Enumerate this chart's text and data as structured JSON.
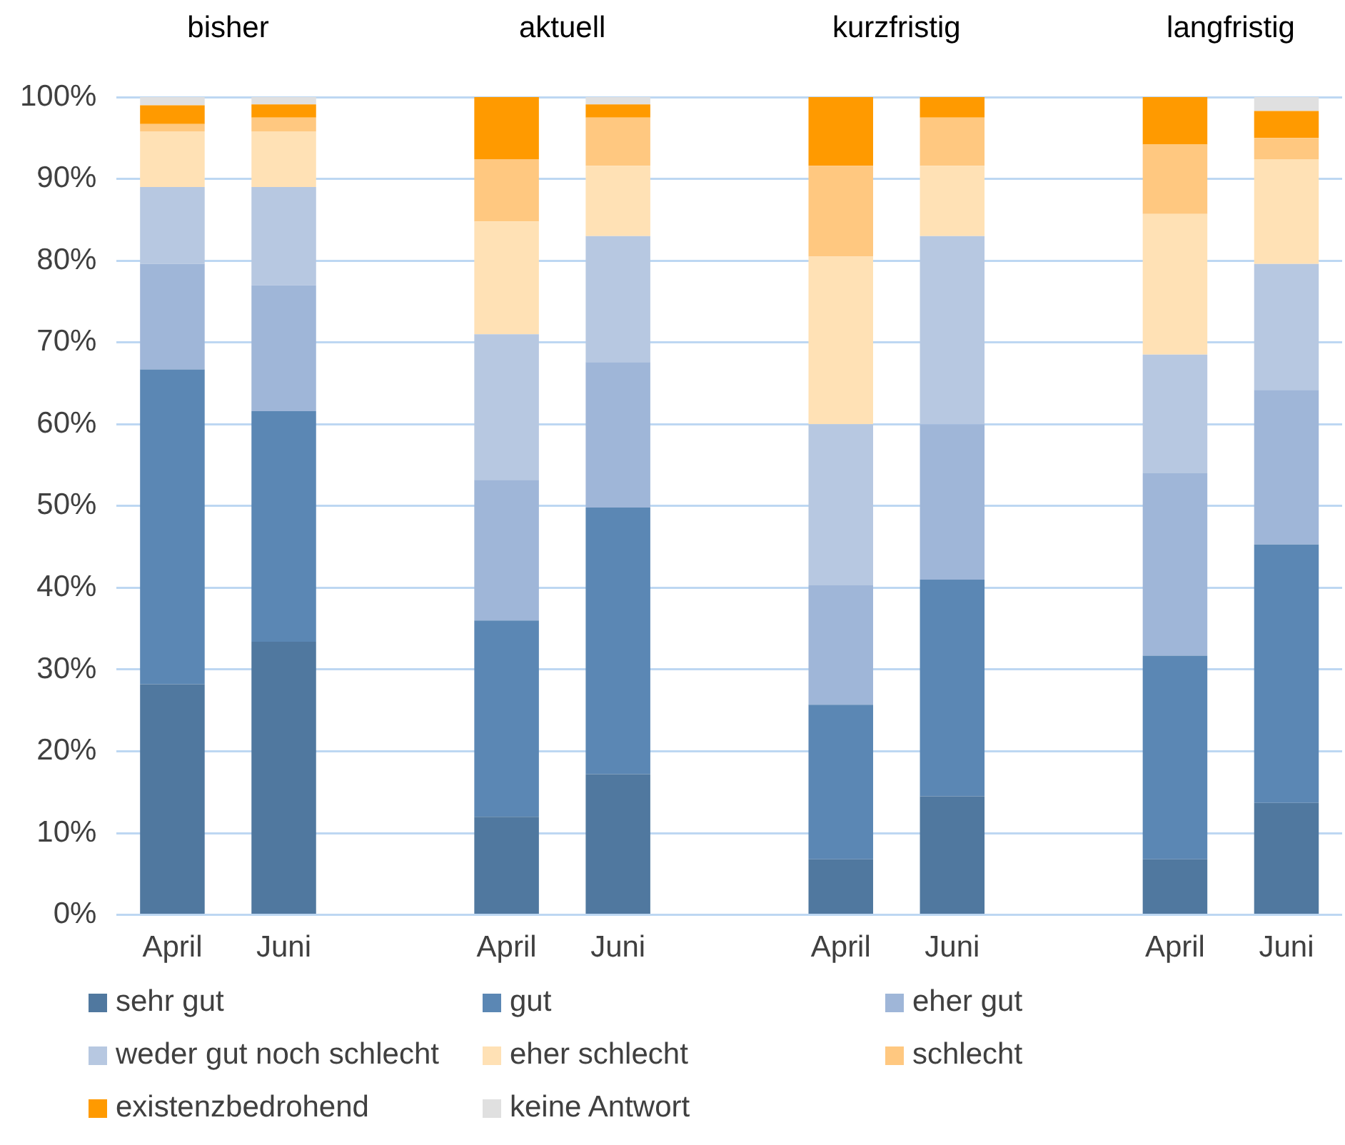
{
  "chart_data": {
    "type": "bar",
    "stacked": true,
    "categories": [
      "April",
      "Juni",
      null,
      "April",
      "Juni",
      null,
      "April",
      "Juni",
      null,
      "April",
      "Juni"
    ],
    "annotations": [
      "bisher",
      "aktuell",
      "kurzfristig",
      "langfristig"
    ],
    "series": [
      {
        "name": "sehr gut",
        "color": "#50789f",
        "values": [
          28.2,
          33.4,
          null,
          12,
          17.2,
          null,
          6.8,
          14.5,
          null,
          6.8,
          13.7
        ]
      },
      {
        "name": "gut",
        "color": "#5b87b4",
        "values": [
          38.5,
          28.2,
          null,
          24,
          32.6,
          null,
          18.9,
          26.5,
          null,
          24.9,
          31.6
        ]
      },
      {
        "name": "eher gut",
        "color": "#9fb6d8",
        "values": [
          12.9,
          15.4,
          null,
          17.2,
          17.8,
          null,
          14.6,
          19,
          null,
          22.3,
          18.9
        ]
      },
      {
        "name": "weder gut noch schlecht",
        "color": "#b7c8e1",
        "values": [
          9.4,
          12,
          null,
          17.8,
          15.4,
          null,
          19.7,
          23,
          null,
          14.5,
          15.4
        ]
      },
      {
        "name": "eher schlecht",
        "color": "#ffe1b5",
        "values": [
          6.8,
          6.8,
          null,
          13.8,
          8.6,
          null,
          20.5,
          8.6,
          null,
          17.2,
          12.8
        ]
      },
      {
        "name": "schlecht",
        "color": "#ffc880",
        "values": [
          0.9,
          1.7,
          null,
          7.6,
          5.9,
          null,
          11.1,
          5.9,
          null,
          8.5,
          2.6
        ]
      },
      {
        "name": "existenzbedrohend",
        "color": "#ff9a00",
        "values": [
          2.3,
          1.6,
          null,
          7.6,
          1.6,
          null,
          8.4,
          2.5,
          null,
          5.8,
          3.3
        ]
      },
      {
        "name": "keine Antwort",
        "color": "#e0e0e0",
        "values": [
          1,
          0.9,
          null,
          0,
          0.9,
          null,
          0,
          0,
          null,
          0,
          1.7
        ]
      }
    ],
    "ylim": [
      0,
      100
    ],
    "yticks": [
      {
        "value": 0,
        "label": "0%"
      },
      {
        "value": 10,
        "label": "10%"
      },
      {
        "value": 20,
        "label": "20%"
      },
      {
        "value": 30,
        "label": "30%"
      },
      {
        "value": 40,
        "label": "40%"
      },
      {
        "value": 50,
        "label": "50%"
      },
      {
        "value": 60,
        "label": "60%"
      },
      {
        "value": 70,
        "label": "70%"
      },
      {
        "value": 80,
        "label": "80%"
      },
      {
        "value": 90,
        "label": "90%"
      },
      {
        "value": 100,
        "label": "100%"
      }
    ],
    "grid": "y",
    "legend": "bottom"
  }
}
